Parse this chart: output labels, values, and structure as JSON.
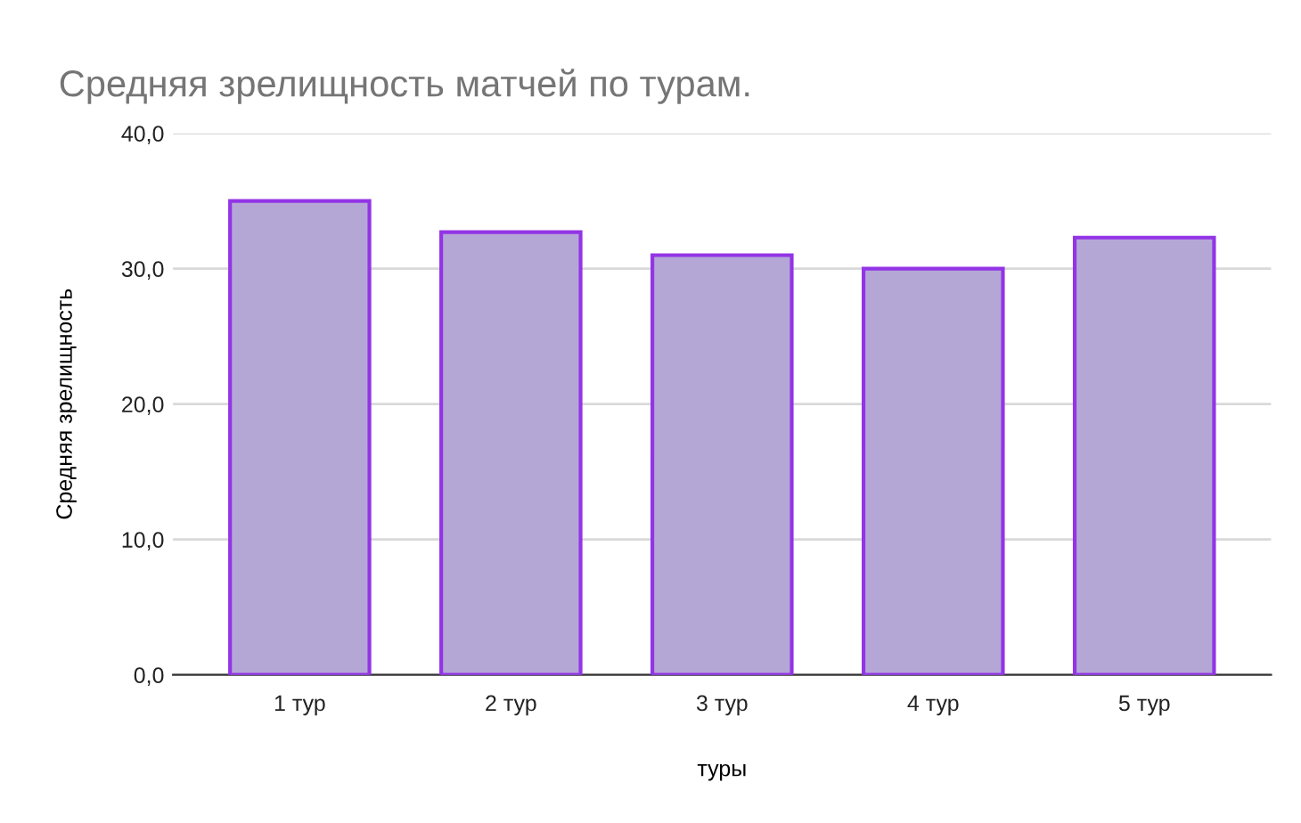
{
  "chart_data": {
    "type": "bar",
    "title": "Средняя зрелищность матчей по турам.",
    "xlabel": "туры",
    "ylabel": "Средняя зрелищность",
    "categories": [
      "1 тур",
      "2 тур",
      "3 тур",
      "4 тур",
      "5 тур"
    ],
    "series": [
      {
        "color": "#b4a7d6",
        "values": [
          35.0,
          32.7,
          31.0,
          30.0,
          32.3
        ]
      }
    ],
    "ylim": [
      0,
      40
    ],
    "yticks": [
      {
        "value": 0,
        "label": "0,0"
      },
      {
        "value": 10,
        "label": "10,0"
      },
      {
        "value": 20,
        "label": "20,0"
      },
      {
        "value": 30,
        "label": "30,0"
      },
      {
        "value": 40,
        "label": "40,0"
      }
    ],
    "grid": "y",
    "legend": false
  }
}
